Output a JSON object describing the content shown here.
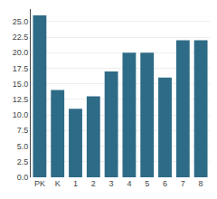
{
  "chart_data": {
    "type": "bar",
    "categories": [
      "PK",
      "K",
      "1",
      "2",
      "3",
      "4",
      "5",
      "6",
      "7",
      "8"
    ],
    "values": [
      26,
      14,
      11,
      13,
      17,
      20,
      20,
      16,
      22,
      22
    ],
    "color": "#2e6b87",
    "ylim": [
      0,
      27
    ],
    "yticks": [
      {
        "value": 0,
        "label": "0.0"
      },
      2.5,
      {
        "value": 5,
        "label": "5.0"
      },
      7.5,
      {
        "value": 10,
        "label": "10.0"
      },
      12.5,
      {
        "value": 15,
        "label": "15.0"
      },
      17.5,
      {
        "value": 20,
        "label": "20.0"
      },
      22.5,
      {
        "value": 25,
        "label": "25.0"
      }
    ],
    "grid": true
  }
}
